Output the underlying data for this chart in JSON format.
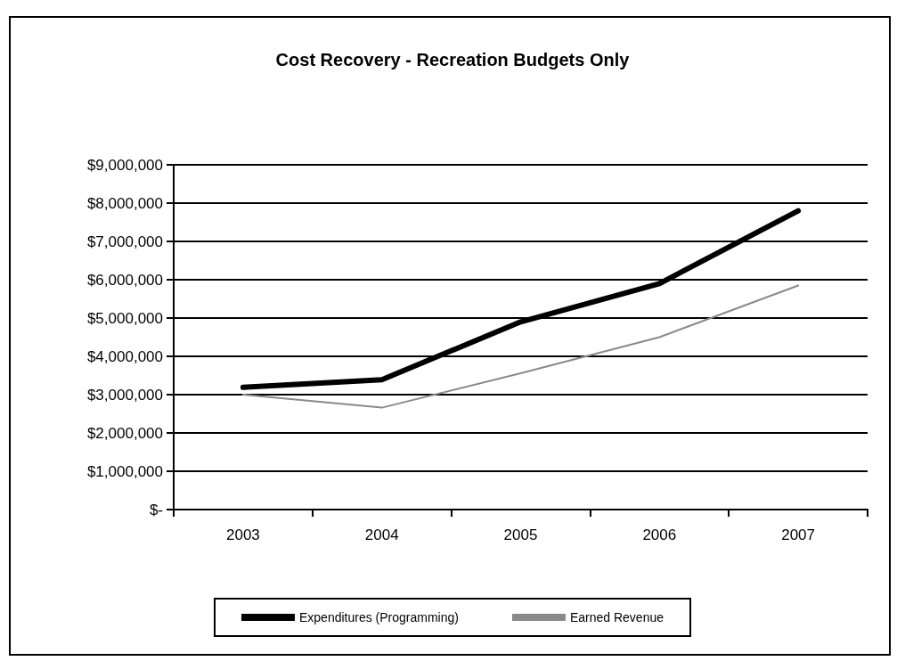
{
  "chart_data": {
    "type": "line",
    "title": "Cost Recovery - Recreation Budgets Only",
    "categories": [
      "2003",
      "2004",
      "2005",
      "2006",
      "2007"
    ],
    "series": [
      {
        "name": "Expenditures (Programming)",
        "color": "#000000",
        "values": [
          3190000,
          3390000,
          4900000,
          5900000,
          7800000
        ]
      },
      {
        "name": "Earned Revenue",
        "color": "#8a8a8a",
        "values": [
          3000000,
          2660000,
          3560000,
          4500000,
          5850000
        ]
      }
    ],
    "ylim": [
      0,
      9000000
    ],
    "yticks": [
      {
        "value": 0,
        "label": "$-"
      },
      {
        "value": 1000000,
        "label": "$1,000,000"
      },
      {
        "value": 2000000,
        "label": "$2,000,000"
      },
      {
        "value": 3000000,
        "label": "$3,000,000"
      },
      {
        "value": 4000000,
        "label": "$4,000,000"
      },
      {
        "value": 5000000,
        "label": "$5,000,000"
      },
      {
        "value": 6000000,
        "label": "$6,000,000"
      },
      {
        "value": 7000000,
        "label": "$7,000,000"
      },
      {
        "value": 8000000,
        "label": "$8,000,000"
      },
      {
        "value": 9000000,
        "label": "$9,000,000"
      }
    ],
    "grid": "y",
    "legend": "bottom",
    "marker": "none",
    "line_style": "solid"
  }
}
